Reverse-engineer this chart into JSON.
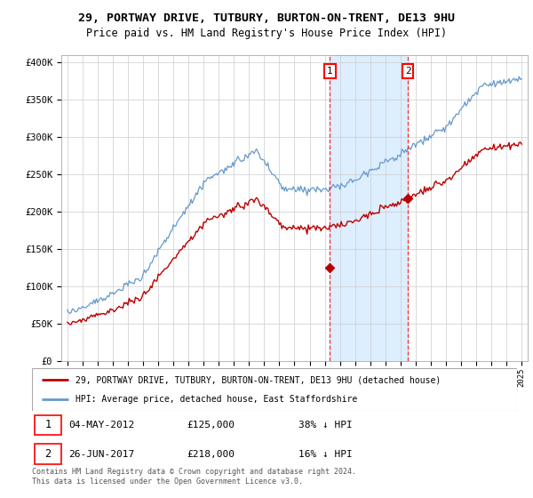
{
  "title": "29, PORTWAY DRIVE, TUTBURY, BURTON-ON-TRENT, DE13 9HU",
  "subtitle": "Price paid vs. HM Land Registry's House Price Index (HPI)",
  "legend_line1": "29, PORTWAY DRIVE, TUTBURY, BURTON-ON-TRENT, DE13 9HU (detached house)",
  "legend_line2": "HPI: Average price, detached house, East Staffordshire",
  "footnote": "Contains HM Land Registry data © Crown copyright and database right 2024.\nThis data is licensed under the Open Government Licence v3.0.",
  "sale1_date": "04-MAY-2012",
  "sale1_price": 125000,
  "sale1_pct": "38% ↓ HPI",
  "sale1_year": 2012.34,
  "sale2_date": "26-JUN-2017",
  "sale2_price": 218000,
  "sale2_pct": "16% ↓ HPI",
  "sale2_year": 2017.49,
  "red_color": "#bb0000",
  "blue_color": "#6699cc",
  "shade_color": "#ddeeff",
  "bg_color": "#ffffff",
  "grid_color": "#cccccc",
  "ylim": [
    0,
    410000
  ],
  "xlim_start": 1994.6,
  "xlim_end": 2025.4
}
